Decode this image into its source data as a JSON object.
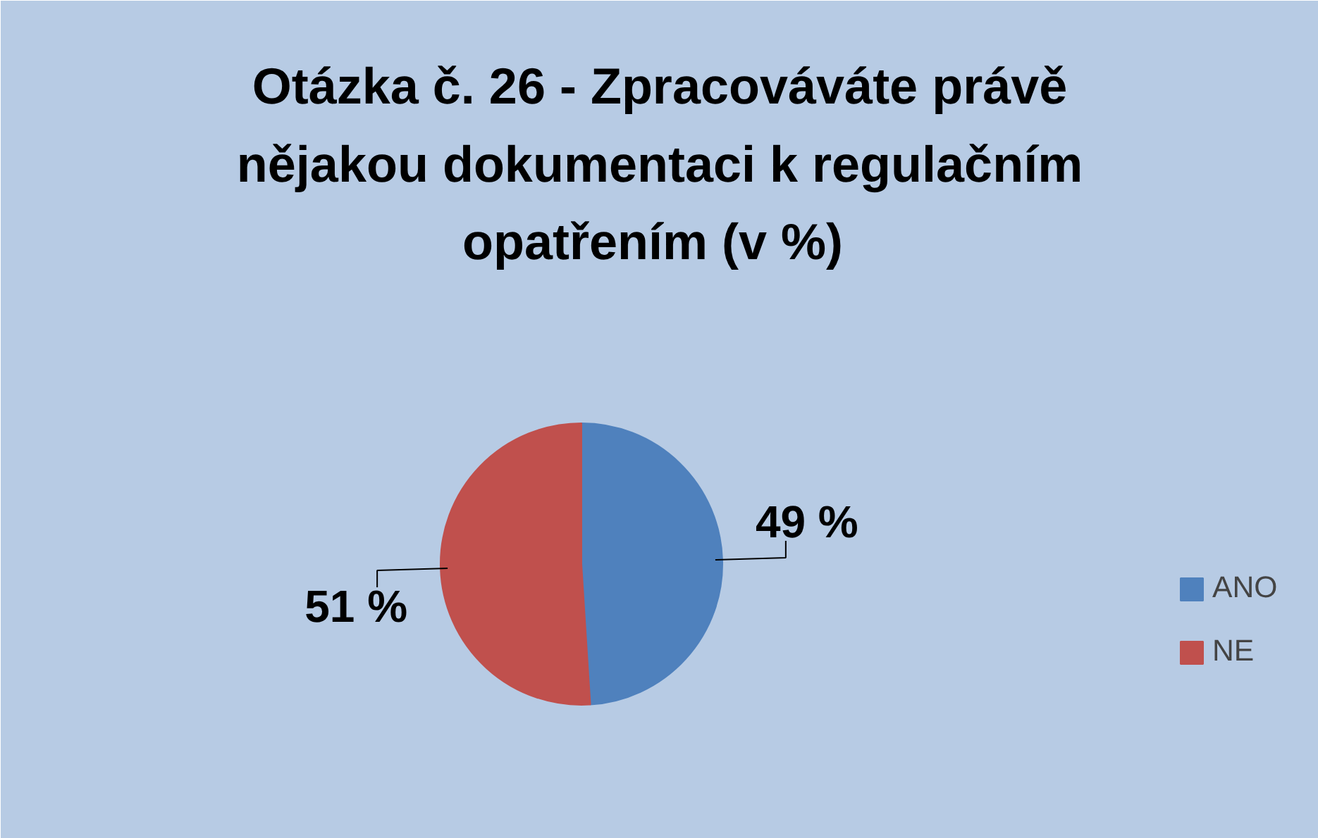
{
  "chart_data": {
    "type": "pie",
    "title": "Otázka č. 26 - Zpracováváte právě\nnějakou dokumentaci k regulačním\nopatřením  (v %)",
    "categories": [
      "ANO",
      "NE"
    ],
    "values": [
      49,
      51
    ],
    "colors": [
      "#4f81bd",
      "#c0504d"
    ],
    "value_labels": [
      "49 %",
      "51 %"
    ],
    "legend": "right"
  }
}
